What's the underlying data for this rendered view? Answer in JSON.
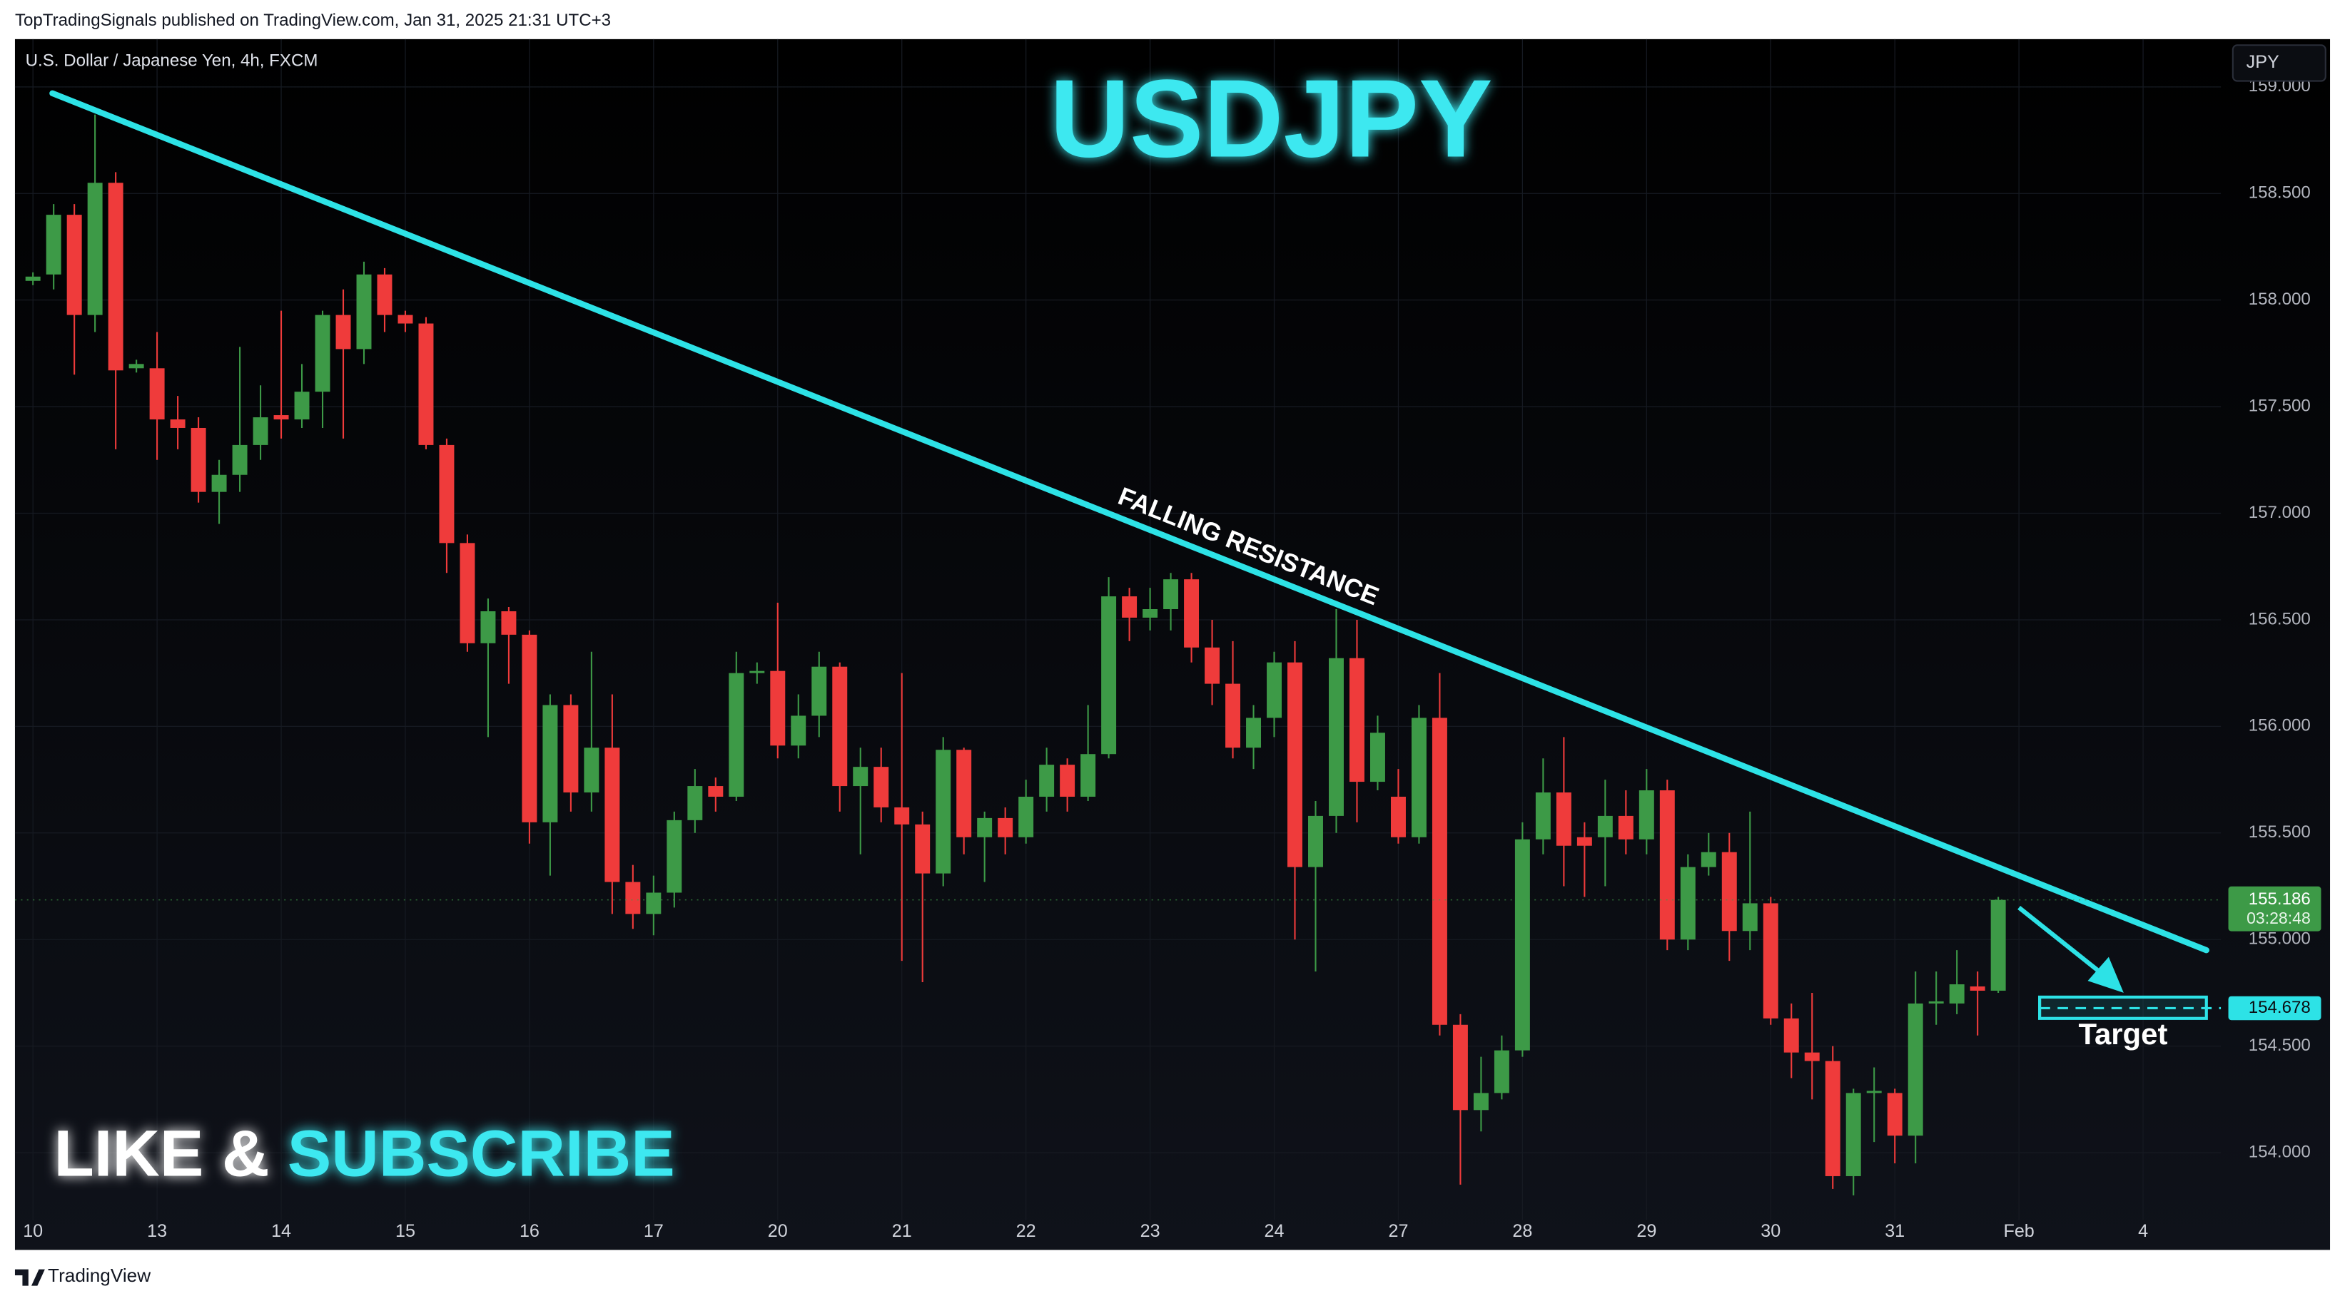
{
  "header": "TopTradingSignals published on TradingView.com, Jan 31, 2025 21:31 UTC+3",
  "footer": "TradingView",
  "chart_data": {
    "type": "candlestick",
    "title": "USDJPY",
    "symbol": "U.S. Dollar / Japanese Yen, 4h, FXCM",
    "currency": "JPY",
    "like": "LIKE &",
    "subscribe": "SUBSCRIBE",
    "up_color": "#3d9a47",
    "down_color": "#ef3b3b",
    "x": [
      0,
      1,
      2,
      3,
      4,
      5,
      6,
      7,
      8,
      9,
      10,
      11,
      12,
      13,
      14,
      15,
      16,
      17,
      18,
      19,
      20,
      21,
      22,
      23,
      24,
      25,
      26,
      27,
      28,
      29,
      30,
      31,
      32,
      33,
      34,
      35,
      36,
      37,
      38,
      39,
      40,
      41,
      42,
      43,
      44,
      45,
      46,
      47,
      48,
      49,
      50,
      51,
      52,
      53,
      54,
      55,
      56,
      57,
      58,
      59,
      60,
      61,
      62,
      63,
      64,
      65,
      66,
      67,
      68,
      69,
      70,
      71,
      72,
      73,
      74,
      75,
      76,
      77,
      78,
      79,
      80,
      81,
      82,
      83,
      84,
      85,
      86,
      87,
      88,
      89,
      90,
      91,
      92,
      93,
      94,
      95
    ],
    "open": [
      158.09,
      158.12,
      158.4,
      157.93,
      158.55,
      157.68,
      157.68,
      157.44,
      157.4,
      157.1,
      157.18,
      157.32,
      157.46,
      157.44,
      157.57,
      157.93,
      157.77,
      158.12,
      157.93,
      157.89,
      157.32,
      156.86,
      156.39,
      156.54,
      156.43,
      155.55,
      156.1,
      155.69,
      155.9,
      155.27,
      155.12,
      155.22,
      155.56,
      155.72,
      155.67,
      156.25,
      156.26,
      155.91,
      156.05,
      156.28,
      155.72,
      155.81,
      155.62,
      155.54,
      155.31,
      155.89,
      155.48,
      155.57,
      155.48,
      155.67,
      155.82,
      155.67,
      155.87,
      156.61,
      156.51,
      156.55,
      156.69,
      156.37,
      156.2,
      155.9,
      156.04,
      156.3,
      155.34,
      155.58,
      156.32,
      155.74,
      155.67,
      155.48,
      156.04,
      154.6,
      154.2,
      154.28,
      154.48,
      155.47,
      155.69,
      155.48,
      155.48,
      155.58,
      155.47,
      155.7,
      155.0,
      155.34,
      155.41,
      155.04,
      155.17,
      154.63,
      154.47,
      154.43,
      153.89,
      154.28,
      154.28,
      154.08,
      154.7,
      154.7,
      154.78,
      154.76
    ],
    "high": [
      158.13,
      158.45,
      158.45,
      158.87,
      158.6,
      157.72,
      157.85,
      157.55,
      157.45,
      157.25,
      157.78,
      157.6,
      157.95,
      157.7,
      157.95,
      158.05,
      158.18,
      158.15,
      157.95,
      157.92,
      157.35,
      156.9,
      156.6,
      156.56,
      156.45,
      156.15,
      156.15,
      156.35,
      156.15,
      155.35,
      155.3,
      155.6,
      155.8,
      155.76,
      156.35,
      156.3,
      156.58,
      156.15,
      156.35,
      156.3,
      155.9,
      155.9,
      156.25,
      155.6,
      155.95,
      155.9,
      155.6,
      155.62,
      155.75,
      155.9,
      155.85,
      156.1,
      156.7,
      156.65,
      156.65,
      156.72,
      156.72,
      156.5,
      156.4,
      156.1,
      156.35,
      156.4,
      155.65,
      156.55,
      156.5,
      156.05,
      155.8,
      156.1,
      156.25,
      154.65,
      154.45,
      154.55,
      155.55,
      155.85,
      155.95,
      155.55,
      155.75,
      155.7,
      155.8,
      155.75,
      155.4,
      155.5,
      155.5,
      155.6,
      155.2,
      154.7,
      154.75,
      154.5,
      154.3,
      154.4,
      154.3,
      154.85,
      154.85,
      154.95,
      154.85,
      155.2
    ],
    "low": [
      158.07,
      158.05,
      157.65,
      157.85,
      157.3,
      157.66,
      157.25,
      157.3,
      157.05,
      156.95,
      157.1,
      157.25,
      157.35,
      157.4,
      157.4,
      157.35,
      157.7,
      157.85,
      157.85,
      157.3,
      156.72,
      156.35,
      155.95,
      156.2,
      155.45,
      155.3,
      155.6,
      155.6,
      155.12,
      155.05,
      155.02,
      155.15,
      155.5,
      155.6,
      155.65,
      156.2,
      155.85,
      155.85,
      155.95,
      155.6,
      155.4,
      155.55,
      154.9,
      154.8,
      155.25,
      155.4,
      155.27,
      155.4,
      155.45,
      155.6,
      155.6,
      155.65,
      155.85,
      156.4,
      156.45,
      156.45,
      156.3,
      156.1,
      155.85,
      155.8,
      155.95,
      155.0,
      154.85,
      155.5,
      155.55,
      155.7,
      155.45,
      155.45,
      154.55,
      153.85,
      154.1,
      154.25,
      154.45,
      155.4,
      155.25,
      155.2,
      155.25,
      155.4,
      155.4,
      154.95,
      154.95,
      155.3,
      154.9,
      154.95,
      154.6,
      154.35,
      154.25,
      153.83,
      153.8,
      154.05,
      153.95,
      153.95,
      154.6,
      154.65,
      154.55,
      154.75
    ],
    "close": [
      158.11,
      158.4,
      157.93,
      158.55,
      157.67,
      157.7,
      157.44,
      157.4,
      157.1,
      157.18,
      157.32,
      157.45,
      157.44,
      157.57,
      157.93,
      157.77,
      158.12,
      157.93,
      157.89,
      157.32,
      156.86,
      156.39,
      156.54,
      156.43,
      155.55,
      156.1,
      155.69,
      155.9,
      155.27,
      155.12,
      155.22,
      155.56,
      155.72,
      155.67,
      156.25,
      156.26,
      155.91,
      156.05,
      156.28,
      155.72,
      155.81,
      155.62,
      155.54,
      155.31,
      155.89,
      155.48,
      155.57,
      155.48,
      155.67,
      155.82,
      155.67,
      155.87,
      156.61,
      156.51,
      156.55,
      156.69,
      156.37,
      156.2,
      155.9,
      156.04,
      156.3,
      155.34,
      155.58,
      156.32,
      155.74,
      155.97,
      155.48,
      156.04,
      154.6,
      154.2,
      154.28,
      154.48,
      155.47,
      155.69,
      155.44,
      155.44,
      155.58,
      155.47,
      155.7,
      155.0,
      155.34,
      155.41,
      155.04,
      155.17,
      154.63,
      154.47,
      154.43,
      153.89,
      154.28,
      154.29,
      154.08,
      154.7,
      154.71,
      154.79,
      154.76,
      155.186
    ],
    "xlim": [
      -0.87,
      105.76
    ],
    "xticks": [
      {
        "value": 0,
        "label": "10"
      },
      {
        "value": 6,
        "label": "13"
      },
      {
        "value": 12,
        "label": "14"
      },
      {
        "value": 18,
        "label": "15"
      },
      {
        "value": 24,
        "label": "16"
      },
      {
        "value": 30,
        "label": "17"
      },
      {
        "value": 36,
        "label": "20"
      },
      {
        "value": 42,
        "label": "21"
      },
      {
        "value": 48,
        "label": "22"
      },
      {
        "value": 54,
        "label": "23"
      },
      {
        "value": 60,
        "label": "24"
      },
      {
        "value": 66,
        "label": "27"
      },
      {
        "value": 72,
        "label": "28"
      },
      {
        "value": 78,
        "label": "29"
      },
      {
        "value": 84,
        "label": "30"
      },
      {
        "value": 90,
        "label": "31"
      },
      {
        "value": 96,
        "label": "Feb"
      },
      {
        "value": 102,
        "label": "4"
      }
    ],
    "ylim": [
      153.544,
      159.224
    ],
    "yticks": [
      {
        "value": 154,
        "label": "154.000"
      },
      {
        "value": 154.5,
        "label": "154.500"
      },
      {
        "value": 155,
        "label": "155.000"
      },
      {
        "value": 155.5,
        "label": "155.500"
      },
      {
        "value": 156,
        "label": "156.000"
      },
      {
        "value": 156.5,
        "label": "156.500"
      },
      {
        "value": 157,
        "label": "157.000"
      },
      {
        "value": 157.5,
        "label": "157.500"
      },
      {
        "value": 158,
        "label": "158.000"
      },
      {
        "value": 158.5,
        "label": "158.500"
      },
      {
        "value": 159,
        "label": "159.000"
      }
    ],
    "trendline": {
      "label": "FALLING RESISTANCE",
      "color": "#2de2e6",
      "x": [
        0.94,
        105.06
      ],
      "y": [
        158.97,
        154.95
      ]
    },
    "target": {
      "label": "Target",
      "value": 154.678,
      "low": 154.63,
      "high": 154.73,
      "x": [
        97.0,
        105.06
      ]
    },
    "last_price": {
      "value": 155.186,
      "countdown": "03:28:48"
    }
  }
}
